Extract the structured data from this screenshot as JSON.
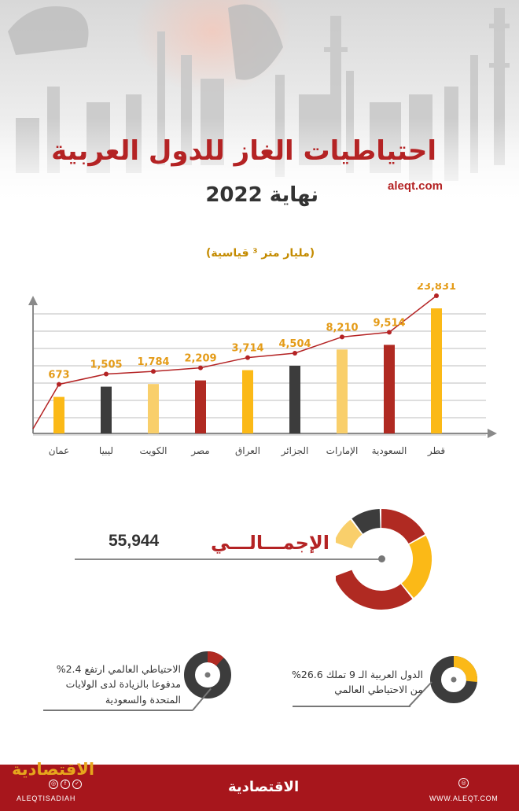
{
  "header": {
    "title": "احتياطيات الغاز للدول العربية",
    "subtitle": "نهاية 2022",
    "site": "aleqt.com"
  },
  "chart_data": {
    "type": "bar",
    "unit": "(مليار متر ³ قياسية)",
    "categories": [
      "عمان",
      "ليبيا",
      "الكويت",
      "مصر",
      "العراق",
      "الجزائر",
      "الإمارات",
      "السعودية",
      "قطر"
    ],
    "values": [
      673,
      1505,
      1784,
      2209,
      3714,
      4504,
      8210,
      9514,
      23831
    ],
    "value_labels": [
      "673",
      "1,505",
      "1,784",
      "2,209",
      "3,714",
      "4,504",
      "8,210",
      "9,514",
      "23,831"
    ],
    "bar_colors": [
      "#fbb917",
      "#3c3c3c",
      "#f9cf6b",
      "#b02a22",
      "#fbb917",
      "#3c3c3c",
      "#f9cf6b",
      "#b02a22",
      "#fbb917"
    ],
    "trend_line": true,
    "grid": true,
    "axis_scale": "non-linear (visual ranking)"
  },
  "total": {
    "label": "الإجمـــالـــي",
    "value": "55,944",
    "donut_colors": [
      "#b02a22",
      "#fbb917",
      "#b02a22",
      "#f9cf6b",
      "#3c3c3c"
    ]
  },
  "notes": {
    "arab_share": {
      "text_line1": "الدول العربية الـ 9 تملك 26.6%",
      "text_line2": "من الاحتياطي العالمي",
      "percent": 26.6
    },
    "world_growth": {
      "text_line1": "الاحتياطي العالمي ارتفع 2.4%",
      "text_line2": "مدفوعا بالزيادة لدى الولايات",
      "text_line3": "المتحدة والسعودية",
      "percent": 2.4
    }
  },
  "footer": {
    "brand": "الاقتصادية",
    "handle": "ALEQTISADIAH",
    "site": "WWW.ALEQT.COM",
    "social_icons": [
      "instagram-icon",
      "facebook-icon",
      "twitter-icon"
    ]
  },
  "colors": {
    "brand_red": "#b42324",
    "gold": "#fbb917",
    "light_gold": "#f9cf6b",
    "dark": "#3c3c3c",
    "footer_red": "#a7161c"
  }
}
